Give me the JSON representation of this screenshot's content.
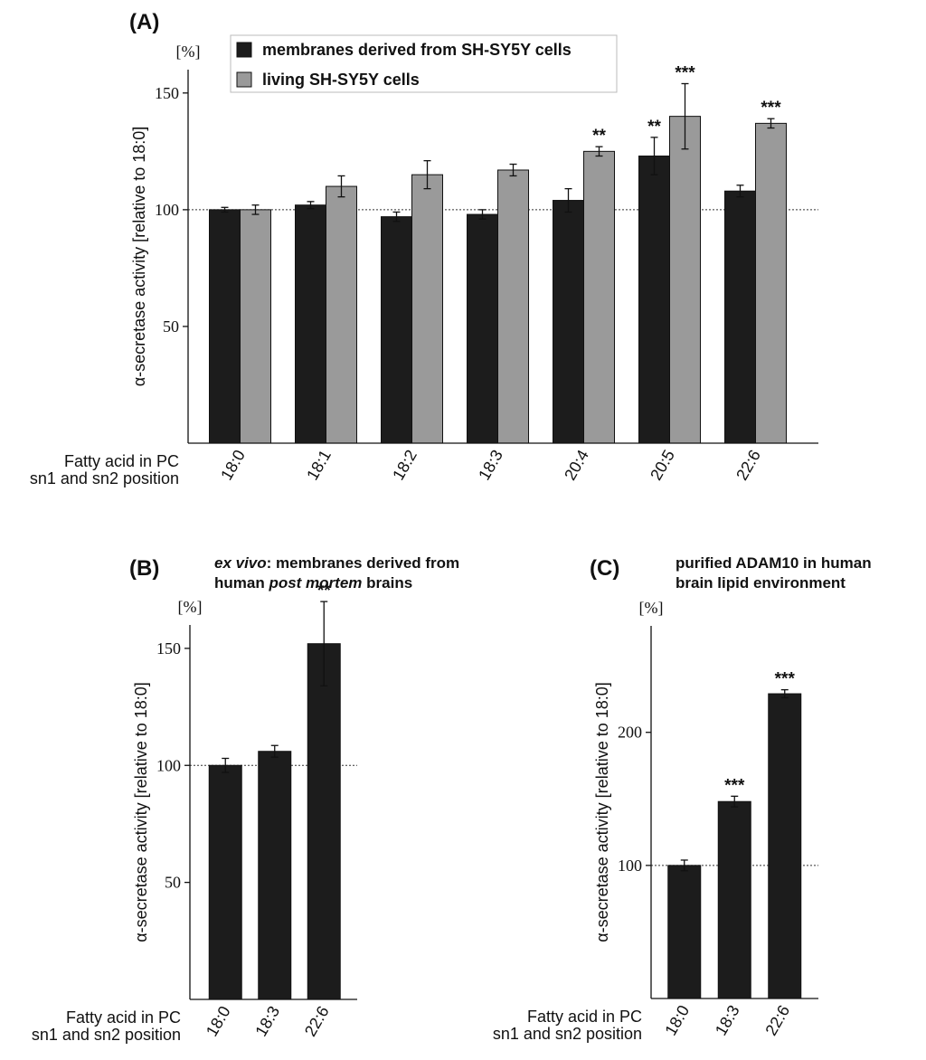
{
  "chart_data": [
    {
      "type": "bar",
      "panel": "(A)",
      "unit_label": "[%]",
      "ylabel": "α-secretase activity [relative to 18:0]",
      "xlabel": [
        "Fatty acid in PC",
        "sn1 and sn2 position"
      ],
      "categories": [
        "18:0",
        "18:1",
        "18:2",
        "18:3",
        "20:4",
        "20:5",
        "22:6"
      ],
      "series": [
        {
          "name": "membranes derived from SH-SY5Y cells",
          "color": "#1c1c1c",
          "values": [
            100,
            102,
            97,
            98,
            104,
            123,
            108
          ],
          "errors": [
            1,
            1.5,
            2,
            2,
            5,
            8,
            2.5
          ],
          "significance": [
            null,
            null,
            null,
            null,
            null,
            "**",
            null
          ]
        },
        {
          "name": "living SH-SY5Y cells",
          "color": "#9a9a9a",
          "values": [
            100,
            110,
            115,
            117,
            125,
            140,
            137
          ],
          "errors": [
            2,
            4.5,
            6,
            2.5,
            2,
            14,
            2
          ],
          "significance": [
            null,
            null,
            null,
            null,
            "**",
            "***",
            "***"
          ]
        }
      ],
      "ylim": [
        0,
        160
      ],
      "yticks": [
        50,
        100,
        150
      ],
      "reference_line": 100
    },
    {
      "type": "bar",
      "panel": "(B)",
      "title": [
        [
          "ex vivo",
          ": membranes derived from"
        ],
        [
          "human ",
          "post mortem",
          " brains"
        ]
      ],
      "unit_label": "[%]",
      "ylabel": "α-secretase activity [relative to 18:0]",
      "xlabel": [
        "Fatty acid in PC",
        "sn1 and sn2 position"
      ],
      "categories": [
        "18:0",
        "18:3",
        "22:6"
      ],
      "series": [
        {
          "color": "#1c1c1c",
          "values": [
            100,
            106,
            152
          ],
          "errors": [
            3,
            2.5,
            18
          ],
          "significance": [
            null,
            null,
            "**"
          ]
        }
      ],
      "ylim": [
        0,
        160
      ],
      "yticks": [
        50,
        100,
        150
      ],
      "reference_line": 100
    },
    {
      "type": "bar",
      "panel": "(C)",
      "title": [
        [
          "purified ADAM10 in human"
        ],
        [
          "brain lipid environment"
        ]
      ],
      "unit_label": "[%]",
      "ylabel": "α-secretase activity [relative to 18:0]",
      "xlabel": [
        "Fatty acid in PC",
        "sn1 and sn2 position"
      ],
      "categories": [
        "18:0",
        "18:3",
        "22:6"
      ],
      "series": [
        {
          "color": "#1c1c1c",
          "values": [
            100,
            148,
            229
          ],
          "errors": [
            4,
            4,
            3
          ],
          "significance": [
            null,
            "***",
            "***"
          ]
        }
      ],
      "ylim": [
        0,
        280
      ],
      "yticks": [
        100,
        200
      ],
      "reference_line": 100
    }
  ]
}
